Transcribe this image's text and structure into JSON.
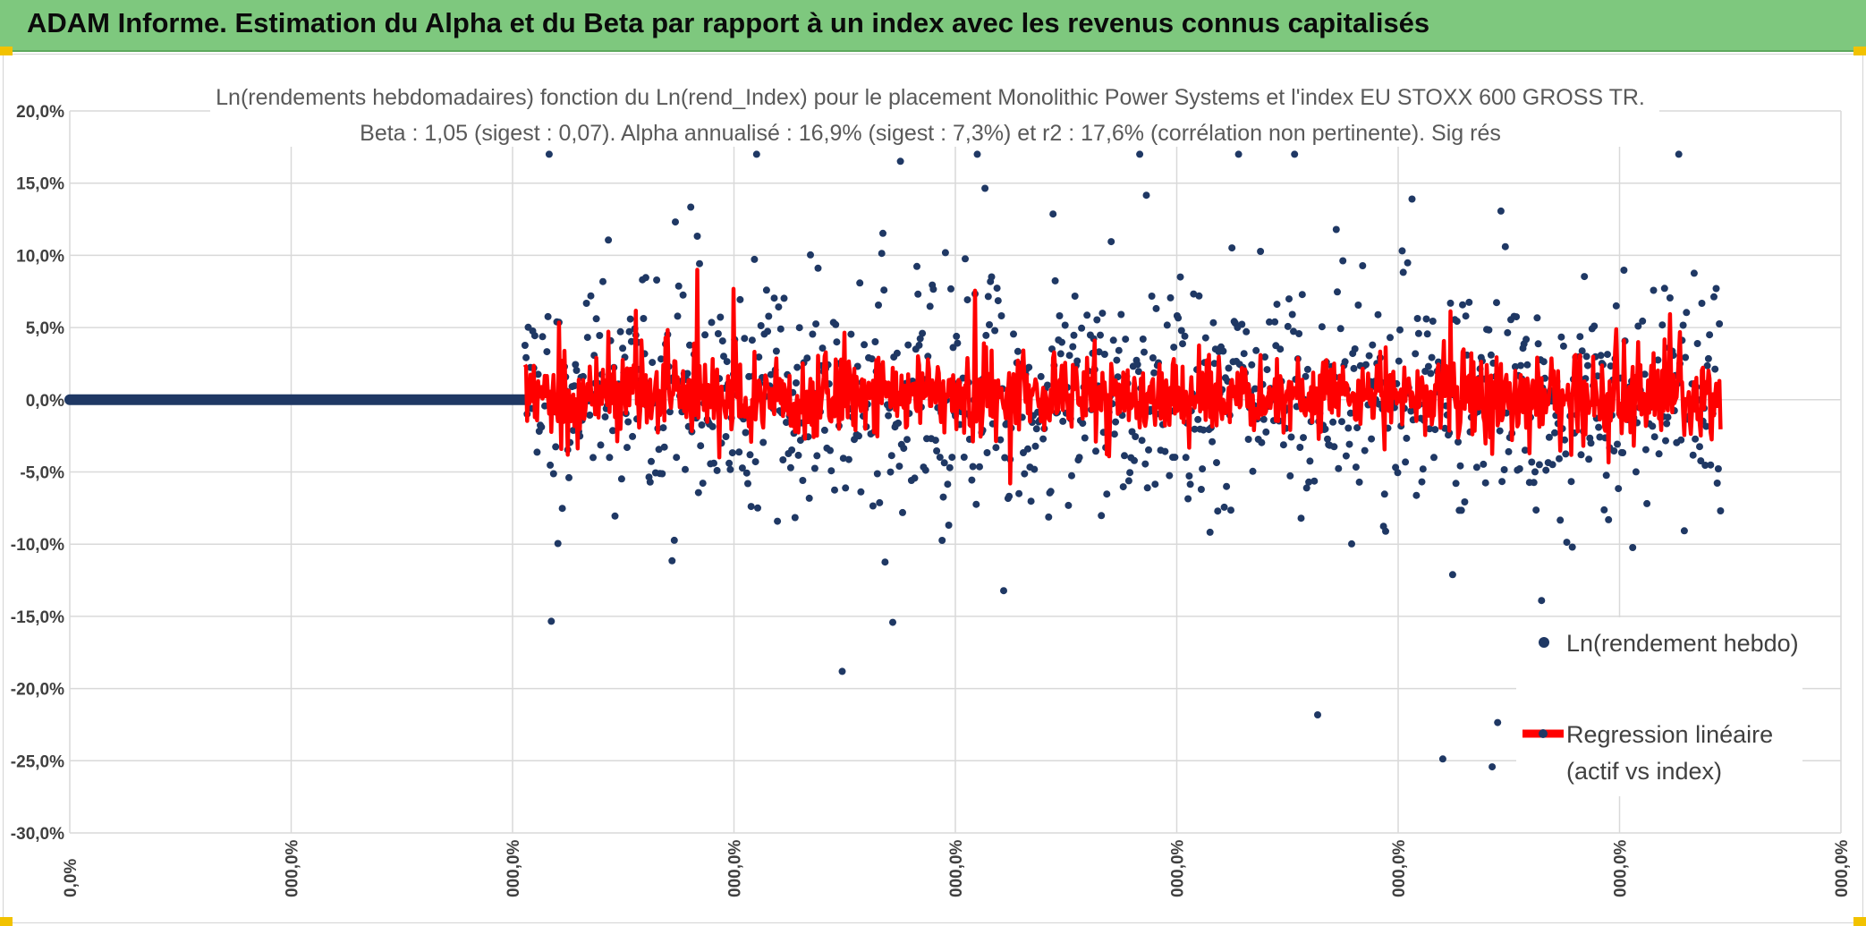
{
  "banner": {
    "title": "ADAM Informe. Estimation du Alpha et du Beta par rapport à un index avec les revenus connus capitalisés"
  },
  "colors": {
    "banner_bg": "#7ec87e",
    "scatter": "#1f3864",
    "regression": "#ff0000",
    "grid": "#d9d9d9",
    "handle": "#f2c200"
  },
  "chart_data": {
    "type": "scatter",
    "title_line1": "Ln(rendements hebdomadaires) fonction du Ln(rend_Index) pour le placement Monolithic Power Systems  et l'index EU STOXX 600 GROSS TR.",
    "title_line2": "Beta : 1,05 (sigest : 0,07). Alpha annualisé : 16,9% (sigest : 7,3%) et r2 : 17,6% (corrélation non pertinente). Sig rés",
    "y_ticks": [
      "20,0%",
      "15,0%",
      "10,0%",
      "5,0%",
      "0,0%",
      "-5,0%",
      "-10,0%",
      "-15,0%",
      "-20,0%",
      "-25,0%",
      "-30,0%"
    ],
    "y_values": [
      20,
      15,
      10,
      5,
      0,
      -5,
      -10,
      -15,
      -20,
      -25,
      -30
    ],
    "ylim": [
      -30,
      20
    ],
    "x_ticks": [
      "0,0%",
      "000,0%",
      "000,0%",
      "000,0%",
      "000,0%",
      "000,0%",
      "000,0%",
      "000,0%",
      "000,0%"
    ],
    "x_tick_count": 9,
    "data_start_fraction": 0.257,
    "data_end_fraction": 0.932,
    "point_count": 1090,
    "seed": 7,
    "series": [
      {
        "name": "Ln(rendement hebdo)",
        "kind": "scatter"
      },
      {
        "name_line1": "Regression linéaire",
        "name_line2": "(actif vs index)",
        "kind": "line"
      }
    ],
    "legend": {
      "scatter_label": "Ln(rendement hebdo)",
      "regression_label_1": "Regression linéaire",
      "regression_label_2": "(actif vs index)"
    }
  }
}
